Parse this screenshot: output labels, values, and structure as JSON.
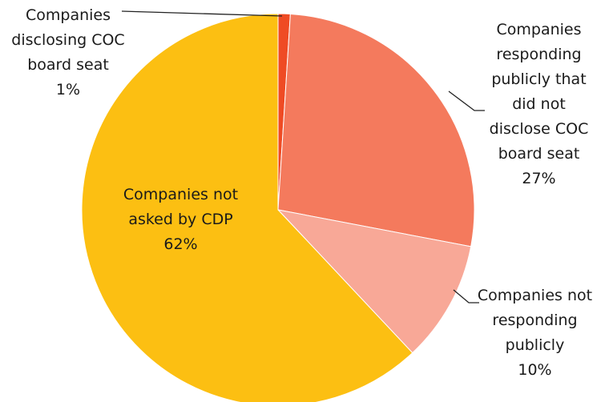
{
  "chart_data": {
    "type": "pie",
    "categories": [
      "Companies disclosing COC board seat",
      "Companies responding publicly that did not disclose COC board seat",
      "Companies not responding publicly",
      "Companies not asked by CDP"
    ],
    "values": [
      1,
      27,
      10,
      62
    ],
    "value_labels": [
      "1%",
      "27%",
      "10%",
      "62%"
    ],
    "colors": [
      "#ef4b24",
      "#f47a5d",
      "#f8a897",
      "#fcbf12"
    ]
  }
}
